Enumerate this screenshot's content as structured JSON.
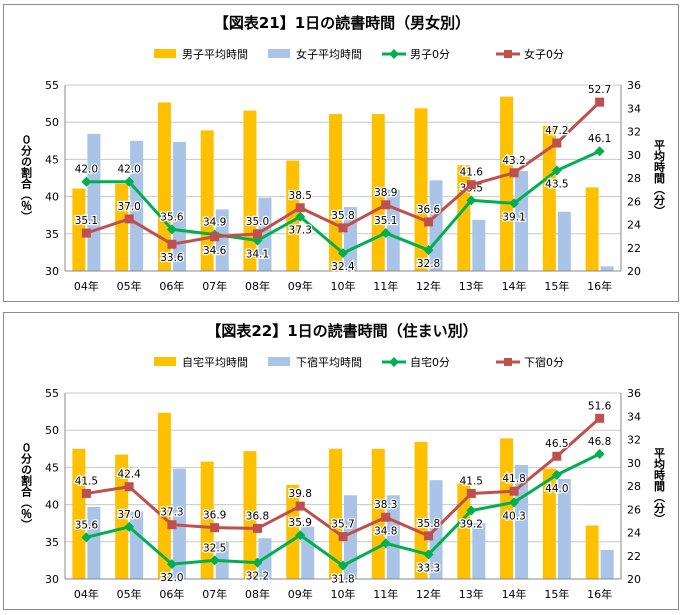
{
  "chart_data": [
    {
      "type": "bar",
      "title": "【図表21】1日の読書時間（男女別）",
      "categories": [
        "04年",
        "05年",
        "06年",
        "07年",
        "08年",
        "09年",
        "10年",
        "11年",
        "12年",
        "13年",
        "14年",
        "15年",
        "16年"
      ],
      "ylabel": "０分の割合（％）",
      "ylabel_right": "平均時間（分）",
      "ylim": [
        30,
        55
      ],
      "y_ticks": [
        30,
        35,
        40,
        45,
        50,
        55
      ],
      "ylim_right": [
        20,
        36
      ],
      "y_ticks_right": [
        20,
        22,
        24,
        26,
        28,
        30,
        32,
        34,
        36
      ],
      "legend_position": "top",
      "bar_series": [
        {
          "name": "男子平均時間",
          "color": "#FFC000",
          "axis": "right",
          "values": [
            27.1,
            27.5,
            34.5,
            32.1,
            33.8,
            29.5,
            33.5,
            33.5,
            34.0,
            29.1,
            35.0,
            32.5,
            27.2
          ]
        },
        {
          "name": "女子平均時間",
          "color": "#A9C4E6",
          "axis": "right",
          "values": [
            31.8,
            31.2,
            31.1,
            25.3,
            26.3,
            20.0,
            25.5,
            27.0,
            27.8,
            24.4,
            28.6,
            25.1,
            20.4
          ]
        }
      ],
      "line_series": [
        {
          "name": "男子0分",
          "color": "#00B050",
          "marker": "diamond",
          "axis": "left",
          "values": [
            42.0,
            42.0,
            35.6,
            34.9,
            34.1,
            37.3,
            32.4,
            35.1,
            32.8,
            39.5,
            39.1,
            43.5,
            46.1
          ],
          "label_pos": [
            "above",
            "above",
            "above",
            "above",
            "below",
            "below",
            "below",
            "above",
            "below",
            "above",
            "below",
            "below",
            "above"
          ]
        },
        {
          "name": "女子0分",
          "color": "#C0504D",
          "marker": "square",
          "axis": "left",
          "values": [
            35.1,
            37.0,
            33.6,
            34.6,
            35.0,
            38.5,
            35.8,
            38.9,
            36.6,
            41.6,
            43.2,
            47.2,
            52.7
          ],
          "label_pos": [
            "above",
            "above",
            "below",
            "below",
            "above",
            "above",
            "above",
            "above",
            "above",
            "above",
            "above",
            "above",
            "above"
          ]
        }
      ]
    },
    {
      "type": "bar",
      "title": "【図表22】1日の読書時間（住まい別）",
      "categories": [
        "04年",
        "05年",
        "06年",
        "07年",
        "08年",
        "09年",
        "10年",
        "11年",
        "12年",
        "13年",
        "14年",
        "15年",
        "16年"
      ],
      "ylabel": "０分の割合（％）",
      "ylabel_right": "平均時間（分）",
      "ylim": [
        30,
        55
      ],
      "y_ticks": [
        30,
        35,
        40,
        45,
        50,
        55
      ],
      "ylim_right": [
        20,
        36
      ],
      "y_ticks_right": [
        20,
        22,
        24,
        26,
        28,
        30,
        32,
        34,
        36
      ],
      "legend_position": "top",
      "bar_series": [
        {
          "name": "自宅平均時間",
          "color": "#FFC000",
          "axis": "right",
          "values": [
            31.2,
            30.7,
            34.3,
            30.1,
            31.0,
            28.1,
            31.2,
            31.2,
            31.8,
            28.2,
            32.1,
            29.5,
            24.6
          ]
        },
        {
          "name": "下宿平均時間",
          "color": "#A9C4E6",
          "axis": "right",
          "values": [
            26.2,
            25.8,
            29.5,
            23.2,
            23.5,
            24.5,
            27.2,
            27.2,
            28.5,
            24.8,
            29.8,
            28.6,
            22.5
          ]
        }
      ],
      "line_series": [
        {
          "name": "自宅0分",
          "color": "#00B050",
          "marker": "diamond",
          "axis": "left",
          "values": [
            35.6,
            37.0,
            32.0,
            32.5,
            32.2,
            35.9,
            31.8,
            34.8,
            33.3,
            39.2,
            40.3,
            44.0,
            46.8
          ],
          "label_pos": [
            "above",
            "above",
            "below",
            "above",
            "below",
            "above",
            "below",
            "above",
            "below",
            "below",
            "below",
            "below",
            "above"
          ]
        },
        {
          "name": "下宿0分",
          "color": "#C0504D",
          "marker": "square",
          "axis": "left",
          "values": [
            41.5,
            42.4,
            37.3,
            36.9,
            36.8,
            39.8,
            35.7,
            38.3,
            35.8,
            41.5,
            41.8,
            46.5,
            51.6
          ],
          "label_pos": [
            "above",
            "above",
            "above",
            "above",
            "above",
            "above",
            "above",
            "above",
            "above",
            "above",
            "above",
            "above",
            "above"
          ]
        }
      ]
    }
  ]
}
